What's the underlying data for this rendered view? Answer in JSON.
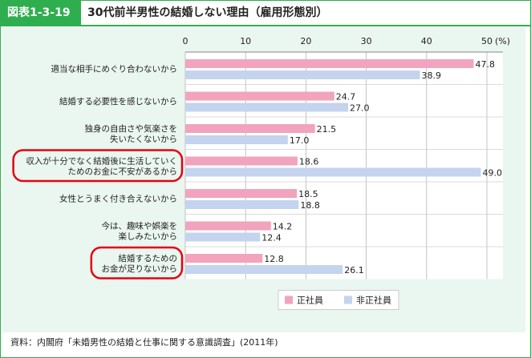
{
  "header": {
    "figure_label": "図表1-3-19",
    "title": "30代前半男性の結婚しない理由（雇用形態別）"
  },
  "source": "資料：内閣府「未婚男性の結婚と仕事に関する意識調査」(2011年)",
  "colors": {
    "accent": "#2fae4f",
    "regular": "#f2a3bd",
    "nonregular": "#c4d4ee",
    "highlight_circle": "#e60012",
    "plot_bg": "#eaf6f0"
  },
  "chart_data": {
    "type": "bar",
    "orientation": "horizontal",
    "categories": [
      [
        "適当な相手にめぐり合わないから"
      ],
      [
        "結婚する必要性を感じないから"
      ],
      [
        "独身の自由さや気楽さを",
        "失いたくないから"
      ],
      [
        "収入が十分でなく結婚後に生活していく",
        "ためのお金に不安があるから"
      ],
      [
        "女性とうまく付き合えないから"
      ],
      [
        "今は、趣味や娯楽を",
        "楽しみたいから"
      ],
      [
        "結婚するための",
        "お金が足りないから"
      ]
    ],
    "series": [
      {
        "name": "正社員",
        "values": [
          47.8,
          24.7,
          21.5,
          18.6,
          18.5,
          14.2,
          12.8
        ]
      },
      {
        "name": "非正社員",
        "values": [
          38.9,
          27.0,
          17.0,
          49.0,
          18.8,
          12.4,
          26.1
        ]
      }
    ],
    "value_labels": [
      [
        "47.8",
        "24.7",
        "21.5",
        "18.6",
        "18.5",
        "14.2",
        "12.8"
      ],
      [
        "38.9",
        "27.0",
        "17.0",
        "49.0",
        "18.8",
        "12.4",
        "26.1"
      ]
    ],
    "xlim": [
      0,
      50
    ],
    "xticks": [
      "0",
      "10",
      "20",
      "30",
      "40",
      "50"
    ],
    "unit": "(%)",
    "highlighted_categories": [
      3,
      6
    ],
    "legend_position": "bottom-right"
  }
}
